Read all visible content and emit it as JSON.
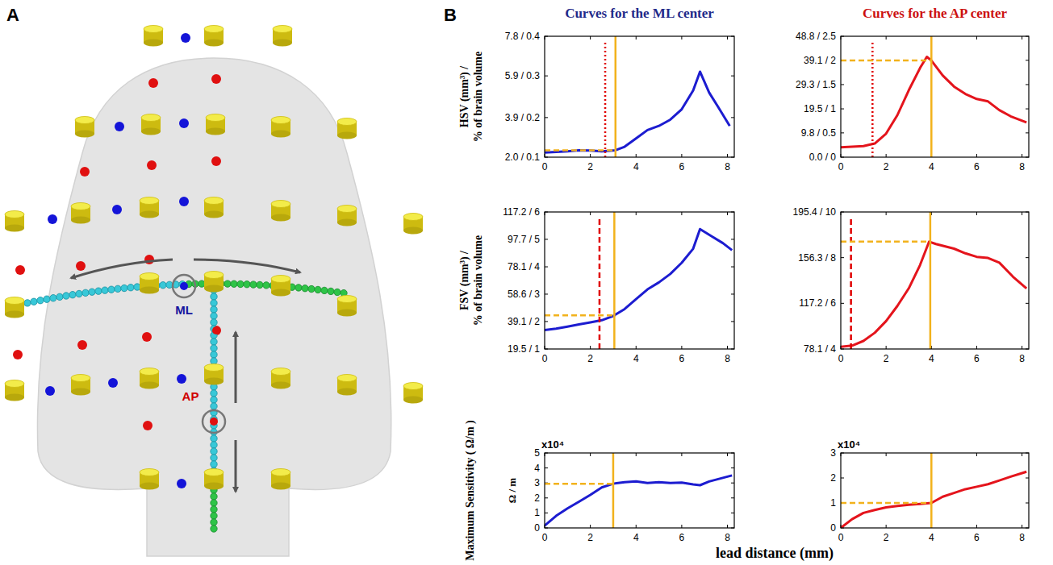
{
  "panel_a": {
    "letter": "A",
    "labels": [
      {
        "text": "ML",
        "color": "#14149e"
      },
      {
        "text": "AP",
        "color": "#d00000"
      }
    ]
  },
  "panel_b": {
    "letter": "B",
    "column_titles": [
      {
        "text": "Curves for the ML center",
        "color": "#1f2a8a"
      },
      {
        "text": "Curves for the AP center",
        "color": "#cc1010"
      }
    ],
    "xlabel": "lead distance (mm)"
  },
  "chart_data": [
    {
      "type": "line",
      "color": "#1c1cd0",
      "ylabel": [
        "HSV (mm³) /",
        "% of brain volume"
      ],
      "x": [
        0,
        0.5,
        1,
        1.5,
        2,
        2.5,
        3.1,
        3.5,
        4,
        4.5,
        5,
        5.5,
        6,
        6.5,
        6.8,
        7.2,
        7.6,
        8.1
      ],
      "values": [
        2.22,
        2.25,
        2.28,
        2.33,
        2.32,
        2.28,
        2.33,
        2.5,
        2.9,
        3.3,
        3.5,
        3.8,
        4.3,
        5.2,
        6.1,
        5.1,
        4.4,
        3.5
      ],
      "xlim": [
        0,
        8.3
      ],
      "xticks": [
        0,
        2,
        4,
        6,
        8
      ],
      "ylim": [
        2.0,
        7.8
      ],
      "yticks": [
        {
          "value": 2.0,
          "label": "2.0 / 0.1"
        },
        {
          "value": 3.9,
          "label": "3.9 / 0.2"
        },
        {
          "value": 5.9,
          "label": "5.9 / 0.3"
        },
        {
          "value": 7.8,
          "label": "7.8 / 0.4"
        }
      ],
      "selected_point": {
        "x": 3.1,
        "y": 2.33,
        "color": "#f2b21c"
      },
      "threshold": {
        "x": 2.65,
        "color": "#e00000",
        "line_style": "dotted"
      }
    },
    {
      "type": "line",
      "color": "#e4141c",
      "x": [
        0,
        0.5,
        1,
        1.5,
        2,
        2.5,
        3,
        3.5,
        3.8,
        4,
        4.5,
        5,
        5.5,
        6,
        6.5,
        7,
        7.5,
        8.2
      ],
      "values": [
        4,
        4.2,
        4.5,
        5.5,
        9.5,
        17,
        27,
        36,
        40.5,
        39,
        33,
        28.5,
        25.5,
        23.5,
        22.5,
        19,
        16.5,
        14
      ],
      "xlim": [
        0,
        8.3
      ],
      "xticks": [
        0,
        2,
        4,
        6,
        8
      ],
      "ylim": [
        0,
        48.8
      ],
      "yticks": [
        {
          "value": 0,
          "label": "0.0 / 0"
        },
        {
          "value": 9.8,
          "label": "9.8 / 0.5"
        },
        {
          "value": 19.5,
          "label": "19.5 / 1"
        },
        {
          "value": 29.3,
          "label": "29.3 / 1.5"
        },
        {
          "value": 39.1,
          "label": "39.1 / 2"
        },
        {
          "value": 48.8,
          "label": "48.8 / 2.5"
        }
      ],
      "selected_point": {
        "x": 4,
        "y": 39,
        "color": "#f2b21c"
      },
      "threshold": {
        "x": 1.4,
        "color": "#e00000",
        "line_style": "dotted"
      }
    },
    {
      "type": "line",
      "color": "#1c1cd0",
      "ylabel": [
        "FSV (mm³) /",
        "% of brain volume"
      ],
      "x": [
        0,
        0.5,
        1,
        1.5,
        2,
        2.5,
        3,
        3.5,
        4,
        4.5,
        5,
        5.5,
        6,
        6.5,
        6.8,
        7.3,
        7.8,
        8.2
      ],
      "values": [
        33,
        34,
        35.5,
        37,
        38.5,
        40,
        43,
        48,
        55,
        62,
        67,
        73,
        81,
        91,
        105,
        100,
        95,
        90
      ],
      "xlim": [
        0,
        8.3
      ],
      "xticks": [
        0,
        2,
        4,
        6,
        8
      ],
      "ylim": [
        19.5,
        117.2
      ],
      "yticks": [
        {
          "value": 19.5,
          "label": "19.5 / 1"
        },
        {
          "value": 39.1,
          "label": "39.1 / 2"
        },
        {
          "value": 58.6,
          "label": "58.6 / 3"
        },
        {
          "value": 78.1,
          "label": "78.1 / 4"
        },
        {
          "value": 97.7,
          "label": "97.7 / 5"
        },
        {
          "value": 117.2,
          "label": "117.2 / 6"
        }
      ],
      "selected_point": {
        "x": 3.05,
        "y": 43.5,
        "color": "#f2b21c"
      },
      "threshold": {
        "x": 2.4,
        "color": "#e00000",
        "line_style": "dashed"
      }
    },
    {
      "type": "line",
      "color": "#e4141c",
      "x": [
        0,
        0.5,
        1,
        1.5,
        2,
        2.5,
        3,
        3.5,
        3.9,
        4.2,
        5,
        5.5,
        6,
        6.5,
        7,
        7.6,
        8.2
      ],
      "values": [
        80,
        81,
        85,
        92,
        102,
        115,
        130,
        150,
        170,
        168,
        164,
        160,
        157,
        156,
        152,
        140,
        130
      ],
      "xlim": [
        0,
        8.3
      ],
      "xticks": [
        0,
        2,
        4,
        6,
        8
      ],
      "ylim": [
        78.1,
        195.4
      ],
      "yticks": [
        {
          "value": 78.1,
          "label": "78.1 / 4"
        },
        {
          "value": 117.2,
          "label": "117.2 / 6"
        },
        {
          "value": 156.3,
          "label": "156.3 / 8"
        },
        {
          "value": 195.4,
          "label": "195.4 / 10"
        }
      ],
      "selected_point": {
        "x": 3.95,
        "y": 170,
        "color": "#f2b21c"
      },
      "threshold": {
        "x": 0.45,
        "color": "#e00000",
        "line_style": "dashed"
      }
    },
    {
      "type": "line",
      "color": "#1c1cd0",
      "ylabel": [
        "Maximum Sensitivity ( Ω/m )"
      ],
      "yunit_label": "Ω / m",
      "y_multiplier": "x10⁴",
      "x": [
        0,
        0.5,
        1,
        1.5,
        2,
        2.5,
        3,
        3.5,
        4,
        4.5,
        5,
        5.5,
        6,
        6.5,
        6.8,
        7.2,
        7.7,
        8.2
      ],
      "values": [
        0.15,
        0.8,
        1.3,
        1.75,
        2.2,
        2.7,
        2.95,
        3.05,
        3.1,
        3.0,
        3.05,
        3.0,
        3.02,
        2.9,
        2.85,
        3.1,
        3.3,
        3.5
      ],
      "xlim": [
        0,
        8.3
      ],
      "xticks": [
        0,
        2,
        4,
        6,
        8
      ],
      "ylim": [
        0,
        5
      ],
      "yticks": [
        0,
        1,
        2,
        3,
        4,
        5
      ],
      "selected_point": {
        "x": 3.0,
        "y": 2.95,
        "color": "#f2b21c"
      }
    },
    {
      "type": "line",
      "color": "#e4141c",
      "y_multiplier": "x10⁴",
      "x": [
        0,
        0.5,
        1,
        1.5,
        2,
        2.5,
        3,
        3.5,
        4,
        4.5,
        5,
        5.5,
        6,
        6.5,
        7,
        7.5,
        8.2
      ],
      "values": [
        0,
        0.35,
        0.6,
        0.72,
        0.82,
        0.88,
        0.93,
        0.96,
        1.0,
        1.25,
        1.4,
        1.55,
        1.65,
        1.75,
        1.9,
        2.05,
        2.25
      ],
      "xlim": [
        0,
        8.3
      ],
      "xticks": [
        0,
        2,
        4,
        6,
        8
      ],
      "ylim": [
        0,
        3
      ],
      "yticks": [
        0,
        1,
        2,
        3
      ],
      "selected_point": {
        "x": 4,
        "y": 1.0,
        "color": "#f2b21c"
      }
    }
  ]
}
